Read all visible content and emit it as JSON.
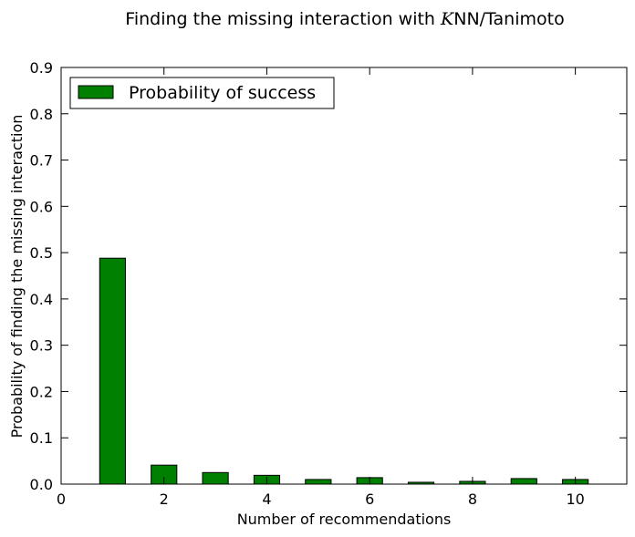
{
  "chart_data": {
    "type": "bar",
    "title": "Finding the missing interaction with K NN/Tanimoto",
    "title_parts": {
      "before": "Finding the missing interaction with ",
      "k": "K",
      "after": "NN/Tanimoto"
    },
    "xlabel": "Number of recommendations",
    "ylabel": "Probability of finding the missing interaction",
    "x": [
      1,
      2,
      3,
      4,
      5,
      6,
      7,
      8,
      9,
      10
    ],
    "series": [
      {
        "name": "Probability of success",
        "color": "#008000",
        "values": [
          0.488,
          0.041,
          0.025,
          0.019,
          0.01,
          0.014,
          0.004,
          0.006,
          0.012,
          0.01
        ]
      }
    ],
    "xlim": [
      0,
      11
    ],
    "ylim": [
      0,
      0.9
    ],
    "xticks": [
      0,
      2,
      4,
      6,
      8,
      10
    ],
    "xtick_labels": [
      "0",
      "2",
      "4",
      "6",
      "8",
      "10"
    ],
    "yticks": [
      0,
      0.1,
      0.2,
      0.3,
      0.4,
      0.5,
      0.6,
      0.7,
      0.8,
      0.9
    ],
    "ytick_labels": [
      "0.0",
      "0.1",
      "0.2",
      "0.3",
      "0.4",
      "0.5",
      "0.6",
      "0.7",
      "0.8",
      "0.9"
    ],
    "bar_width": 0.5,
    "grid": false,
    "legend_position": "top-left"
  }
}
